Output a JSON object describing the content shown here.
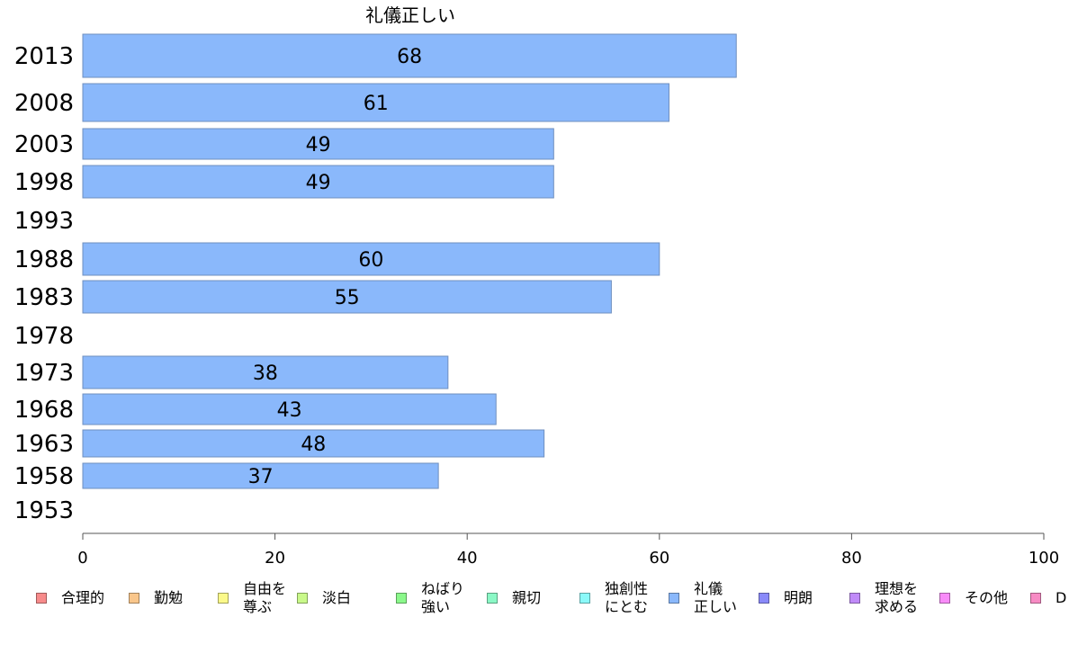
{
  "chart_data": {
    "type": "bar",
    "orientation": "horizontal",
    "title": "礼儀正しい",
    "categories": [
      "2013",
      "2008",
      "2003",
      "1998",
      "1993",
      "1988",
      "1983",
      "1978",
      "1973",
      "1968",
      "1963",
      "1958",
      "1953"
    ],
    "values": [
      68,
      61,
      49,
      49,
      null,
      60,
      55,
      null,
      38,
      43,
      48,
      37,
      null
    ],
    "value_labels": [
      "68",
      "61",
      "49",
      "49",
      "",
      "60",
      "55",
      "",
      "38",
      "43",
      "48",
      "37",
      ""
    ],
    "xlim": [
      0,
      100
    ],
    "xticks": [
      "0",
      "20",
      "40",
      "60",
      "80",
      "100"
    ],
    "xlabel": "",
    "ylabel": "",
    "grid": false,
    "legend_position": "bottom",
    "bar_color": "#8ab8fb",
    "legend": [
      {
        "label": "合理的",
        "color": "#f78b8b"
      },
      {
        "label": "勤勉",
        "color": "#f9c68b"
      },
      {
        "label": "自由を\n尊ぶ",
        "color": "#fbf98a"
      },
      {
        "label": "淡白",
        "color": "#c9f98a"
      },
      {
        "label": "ねばり\n強い",
        "color": "#8bf88b"
      },
      {
        "label": "親切",
        "color": "#8bf8c6"
      },
      {
        "label": "独創性\nにとむ",
        "color": "#8bf9f9"
      },
      {
        "label": "礼儀\n正しい",
        "color": "#8ab8fb"
      },
      {
        "label": "明朗",
        "color": "#8a8af9"
      },
      {
        "label": "理想を\n求める",
        "color": "#c08af8"
      },
      {
        "label": "その他",
        "color": "#f88bf8"
      },
      {
        "label": "D",
        "color": "#f78bc4"
      }
    ]
  }
}
